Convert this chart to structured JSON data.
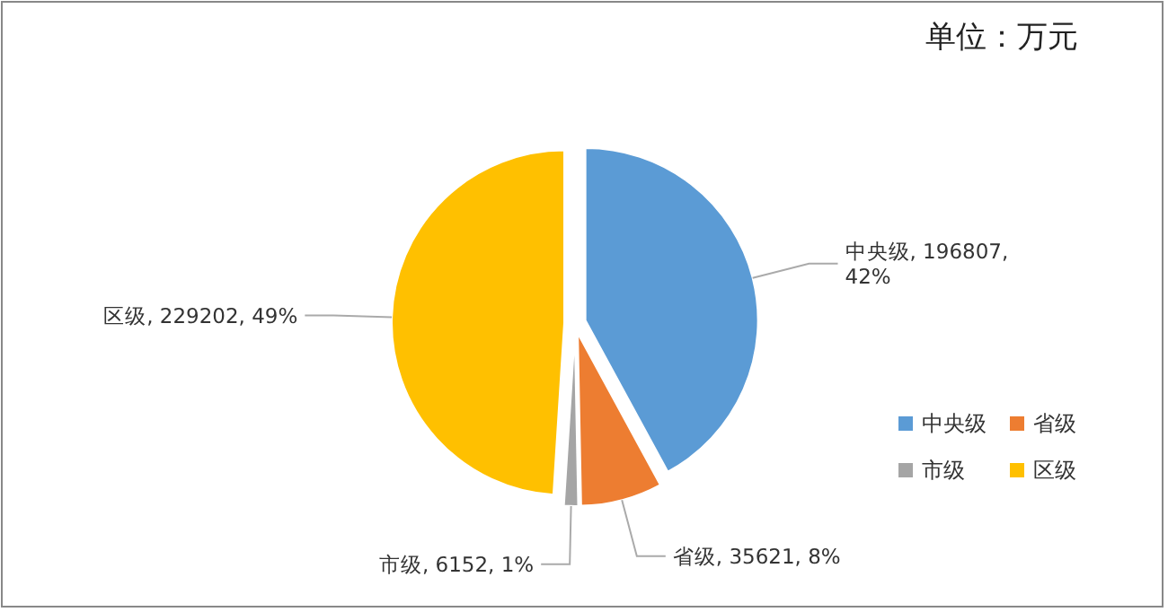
{
  "chart_data": {
    "type": "pie",
    "annotations": [
      "单位：万元"
    ],
    "categories": [
      "中央级",
      "省级",
      "市级",
      "区级"
    ],
    "values": [
      196807,
      35621,
      6152,
      229202
    ],
    "colors": [
      "#5b9bd5",
      "#ed7d31",
      "#a5a5a5",
      "#ffc000"
    ],
    "value_labels": [
      "中央级, 196807, 42%",
      "省级, 35621, 8%",
      "市级, 6152, 1%",
      "区级, 229202, 49%"
    ],
    "legend": "bottom right"
  }
}
